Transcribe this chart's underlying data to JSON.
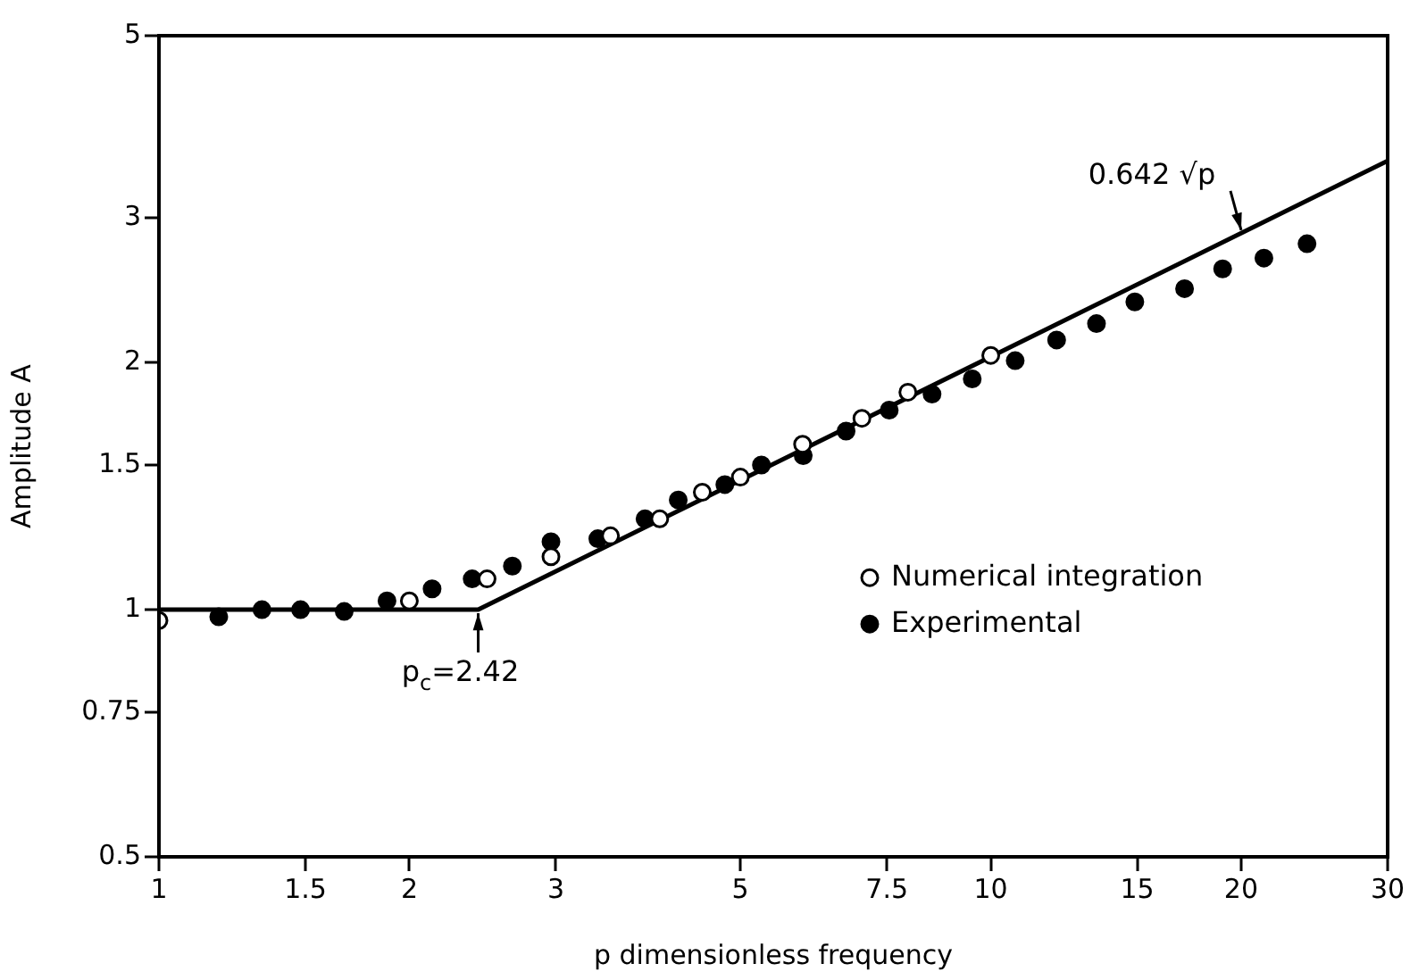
{
  "chart_data": {
    "type": "scatter",
    "xlabel": "p dimensionless frequency",
    "ylabel": "Amplitude A",
    "log": "xy",
    "xlim": [
      1,
      30
    ],
    "xticks": [
      1,
      1.5,
      2,
      3,
      5,
      7.5,
      10,
      15,
      20,
      30
    ],
    "ylim": [
      0.5,
      5
    ],
    "yticks": [
      0.5,
      0.75,
      1,
      1.5,
      2,
      3,
      5
    ],
    "grid": false,
    "legend": "right",
    "marker": "circle",
    "series": [
      {
        "name": "Numerical integration",
        "color": "#ffffff",
        "x": [
          1,
          2,
          2.48,
          2.96,
          3.49,
          4.0,
          4.5,
          5.0,
          5.94,
          7.0,
          7.95,
          10
        ],
        "values": [
          0.97,
          1.025,
          1.09,
          1.16,
          1.23,
          1.29,
          1.39,
          1.45,
          1.59,
          1.71,
          1.84,
          2.04
        ]
      },
      {
        "name": "Experimental",
        "color": "#000000",
        "x": [
          1.18,
          1.33,
          1.48,
          1.67,
          1.88,
          2.13,
          2.38,
          2.66,
          2.96,
          3.37,
          3.84,
          4.21,
          4.79,
          5.3,
          5.95,
          6.7,
          7.55,
          8.5,
          9.5,
          10.7,
          12.0,
          13.4,
          14.9,
          17.1,
          19.0,
          21.3,
          24.0
        ],
        "values": [
          0.98,
          1.0,
          1.0,
          0.995,
          1.025,
          1.06,
          1.09,
          1.13,
          1.21,
          1.22,
          1.29,
          1.36,
          1.42,
          1.5,
          1.54,
          1.65,
          1.75,
          1.83,
          1.91,
          2.01,
          2.13,
          2.23,
          2.37,
          2.46,
          2.6,
          2.68,
          2.79
        ]
      },
      {
        "type": "line",
        "color": "#000000",
        "marker": "none",
        "x": [
          1,
          2.42,
          30
        ],
        "values": [
          1,
          1,
          3.52
        ]
      }
    ],
    "annotations": [
      {
        "text": "0.642 √p",
        "x": 20,
        "y": 2.87
      },
      {
        "text": "p$_{c}$=2.42",
        "x": 2.42,
        "y": 1
      }
    ]
  }
}
